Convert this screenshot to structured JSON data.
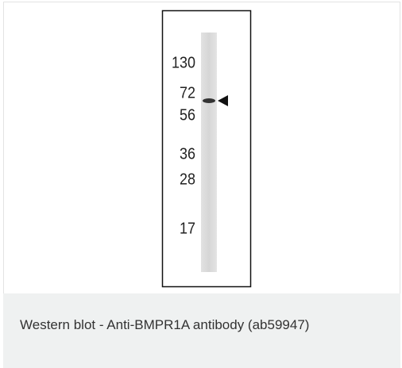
{
  "figure": {
    "markers": [
      "130",
      "72",
      "56",
      "36",
      "28",
      "17"
    ],
    "caption": "Western blot - Anti-BMPR1A antibody (ab59947)"
  }
}
